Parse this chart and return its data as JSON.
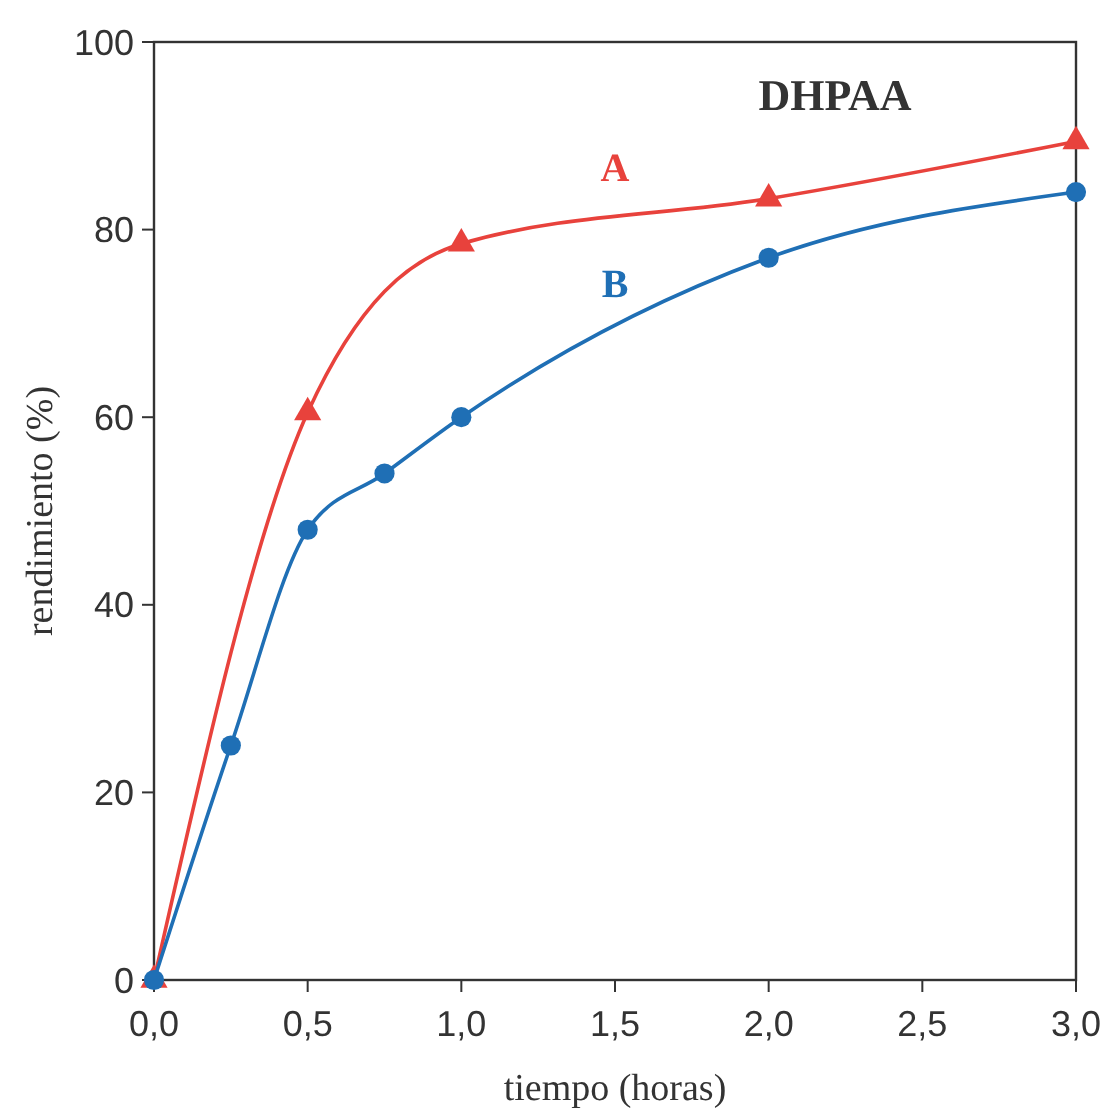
{
  "chart_data": {
    "type": "line",
    "title": "DHPAA",
    "xlabel": "tiempo (horas)",
    "ylabel": "rendimiento (%)",
    "xlim": [
      0,
      3
    ],
    "ylim": [
      0,
      100
    ],
    "xticks": [
      {
        "value": 0,
        "label": "0,0"
      },
      {
        "value": 0.5,
        "label": "0,5"
      },
      {
        "value": 1,
        "label": "1,0"
      },
      {
        "value": 1.5,
        "label": "1,5"
      },
      {
        "value": 2,
        "label": "2,0"
      },
      {
        "value": 2.5,
        "label": "2,5"
      },
      {
        "value": 3,
        "label": "3,0"
      }
    ],
    "yticks": [
      0,
      20,
      40,
      60,
      80,
      100
    ],
    "grid": false,
    "series": [
      {
        "name": "A",
        "color": "#e8423c",
        "marker": "triangle",
        "x": [
          0,
          0.5,
          1,
          2,
          3
        ],
        "values": [
          0,
          60.5,
          78.5,
          83.3,
          89.4
        ]
      },
      {
        "name": "B",
        "color": "#1f6fb5",
        "marker": "circle",
        "x": [
          0,
          0.25,
          0.5,
          0.75,
          1,
          2,
          3
        ],
        "values": [
          0,
          25,
          48,
          54,
          60,
          77,
          84
        ]
      }
    ]
  }
}
